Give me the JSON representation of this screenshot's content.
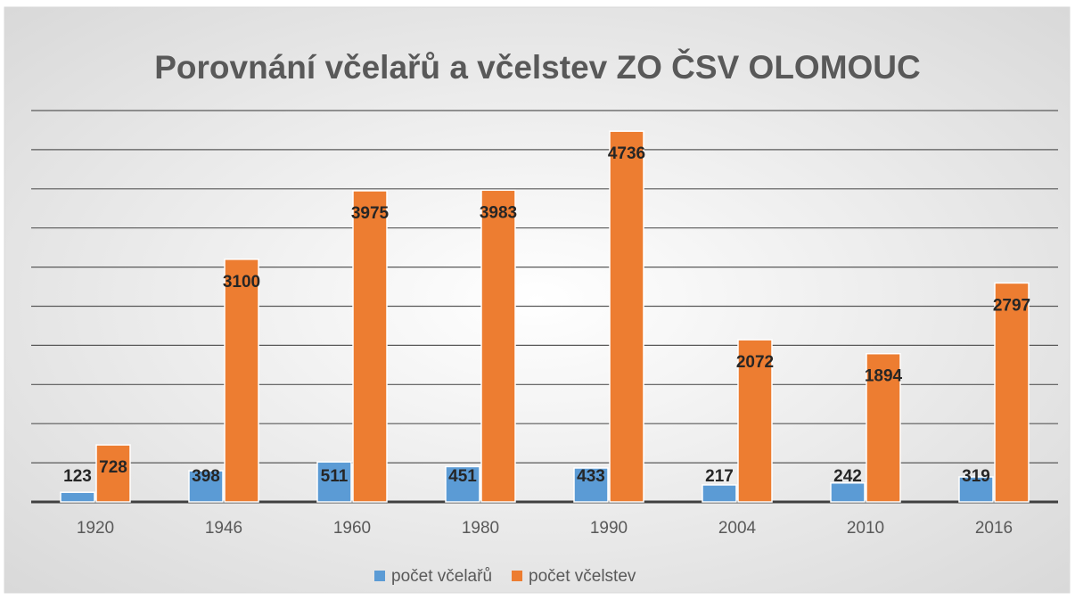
{
  "chart_data": {
    "type": "bar",
    "title": "Porovnání včelařů a včelstev ZO ČSV OLOMOUC",
    "categories": [
      "1920",
      "1946",
      "1960",
      "1980",
      "1990",
      "2004",
      "2010",
      "2016"
    ],
    "series": [
      {
        "name": "počet včelařů",
        "color": "#5b9bd5",
        "values": [
          123,
          398,
          511,
          451,
          433,
          217,
          242,
          319
        ]
      },
      {
        "name": "počet včelstev",
        "color": "#ed7d31",
        "values": [
          728,
          3100,
          3975,
          3983,
          4736,
          2072,
          1894,
          2797
        ]
      }
    ],
    "ylim": [
      0,
      5000
    ],
    "yticks": [
      0,
      500,
      1000,
      1500,
      2000,
      2500,
      3000,
      3500,
      4000,
      4500,
      5000
    ],
    "grid": true,
    "legend": "bottom"
  }
}
